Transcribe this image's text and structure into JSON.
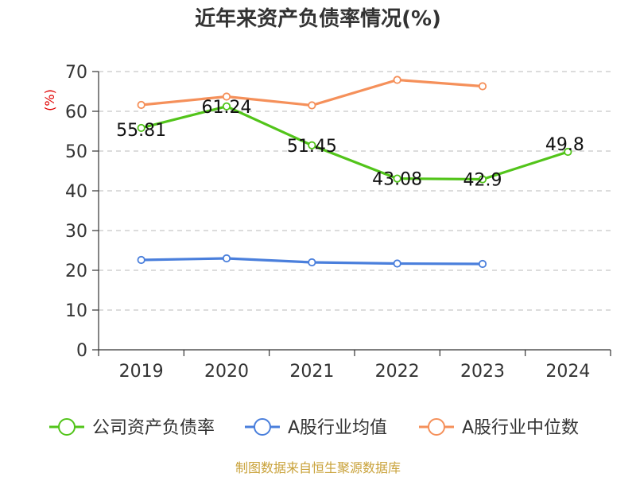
{
  "chart_data": {
    "type": "line",
    "title": "近年来资产负债率情况(%)",
    "ylabel": "(%)",
    "categories": [
      "2019",
      "2020",
      "2021",
      "2022",
      "2023",
      "2024"
    ],
    "ylim": [
      0,
      70
    ],
    "yticks": [
      0,
      10,
      20,
      30,
      40,
      50,
      60,
      70
    ],
    "grid": true,
    "legend_position": "bottom",
    "series": [
      {
        "name": "公司资产负债率",
        "color": "#52c41a",
        "values": [
          55.81,
          61.24,
          51.45,
          43.08,
          42.9,
          49.8
        ],
        "labels": [
          "55.81",
          "61.24",
          "51.45",
          "43.08",
          "42.9",
          "49.8"
        ]
      },
      {
        "name": "A股行业均值",
        "color": "#4a7fdc",
        "values": [
          22.6,
          23.0,
          22.0,
          21.7,
          21.6,
          null
        ]
      },
      {
        "name": "A股行业中位数",
        "color": "#f5905a",
        "values": [
          61.6,
          63.7,
          61.5,
          67.9,
          66.3,
          null
        ]
      }
    ]
  },
  "source": "制图数据来自恒生聚源数据库"
}
